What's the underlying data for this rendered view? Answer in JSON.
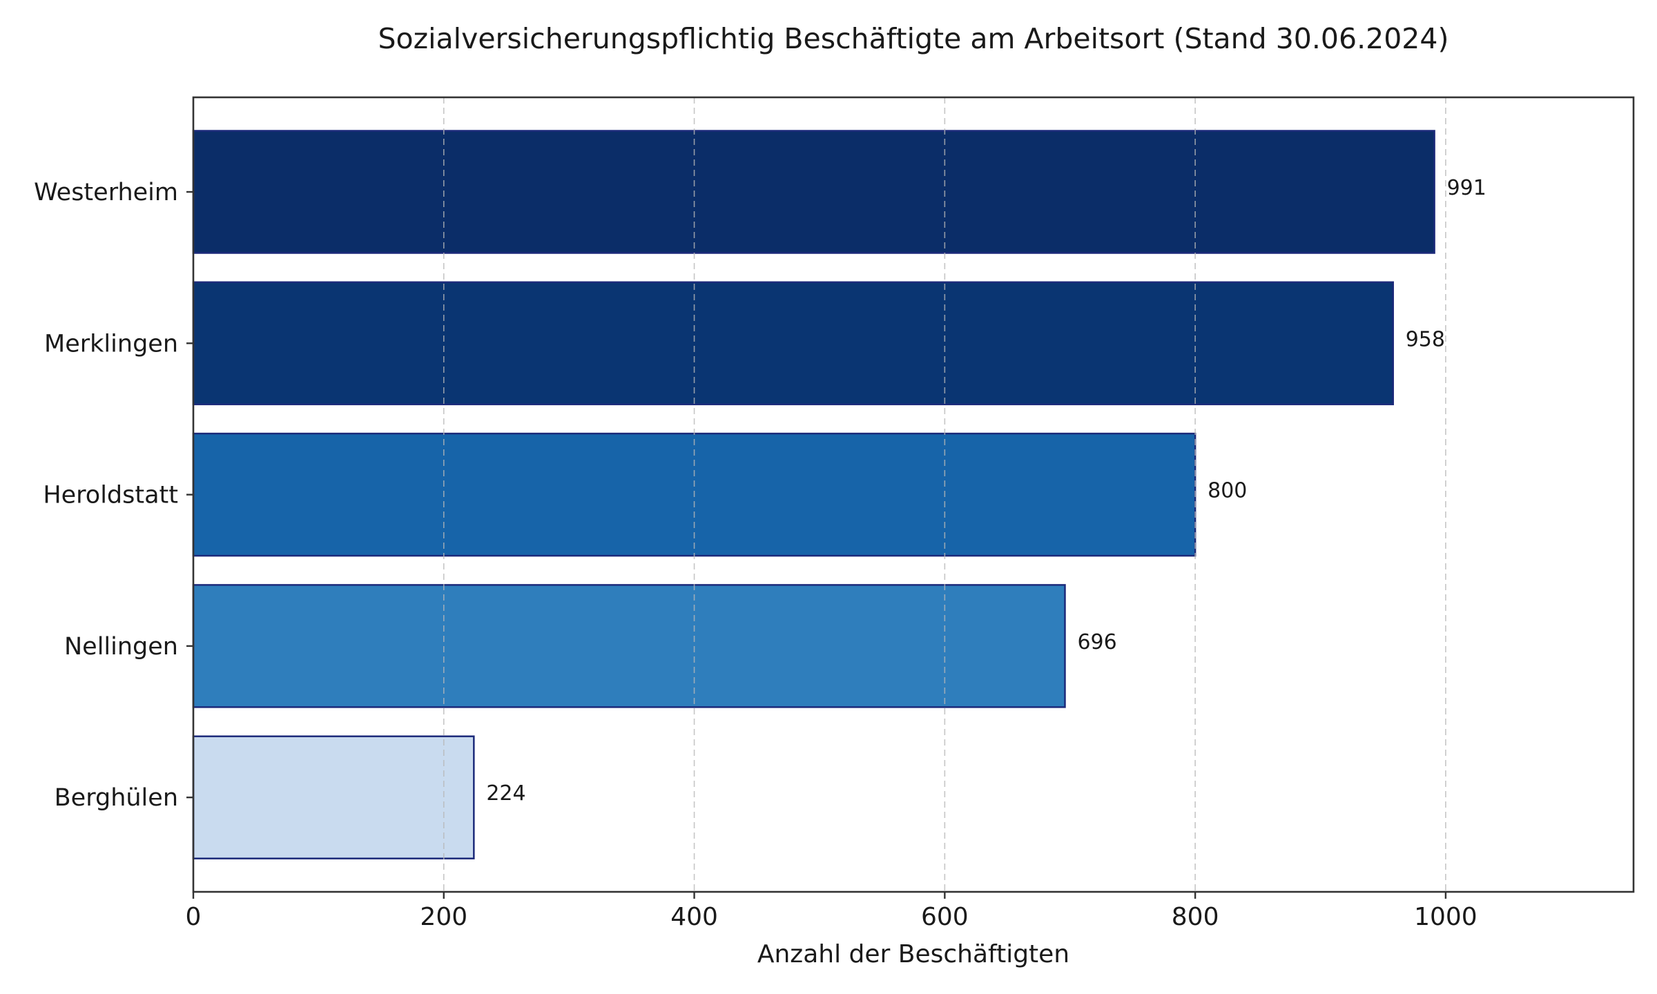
{
  "chart_data": {
    "type": "bar",
    "orientation": "horizontal",
    "title": "Sozialversicherungspflichtig Beschäftigte am Arbeitsort (Stand 30.06.2024)",
    "xlabel": "Anzahl der Beschäftigten",
    "ylabel": "",
    "categories": [
      "Westerheim",
      "Merklingen",
      "Heroldstatt",
      "Nellingen",
      "Berghülen"
    ],
    "values": [
      991,
      958,
      800,
      696,
      224
    ],
    "data_labels": [
      "991",
      "958",
      "800",
      "696",
      "224"
    ],
    "bar_colors": [
      "#0b2d68",
      "#0a3572",
      "#1764a9",
      "#2f7ebc",
      "#c9dbef"
    ],
    "bar_edge_color": "#1c2a7a",
    "xlim": [
      0,
      1150
    ],
    "xticks": [
      0,
      200,
      400,
      600,
      800,
      1000
    ],
    "xtick_labels": [
      "0",
      "200",
      "400",
      "600",
      "800",
      "1000"
    ],
    "grid": {
      "x": true,
      "y": false,
      "style": "dashed"
    },
    "legend": "none"
  }
}
